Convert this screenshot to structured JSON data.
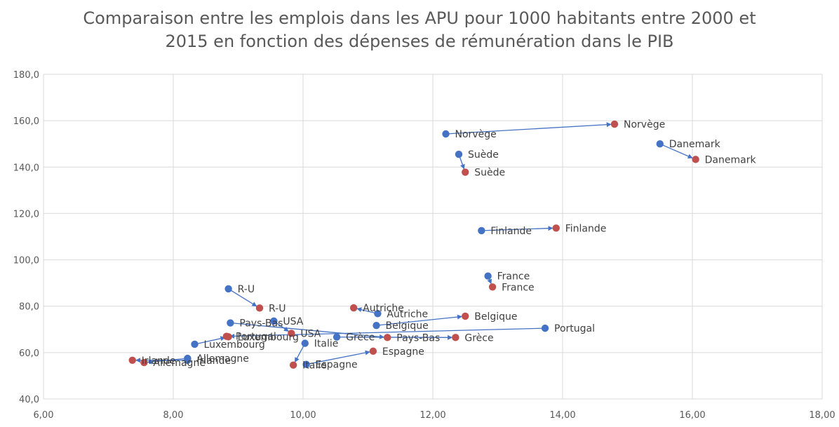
{
  "chart_data": {
    "type": "scatter",
    "title": [
      "Comparaison entre les emplois dans les APU pour 1000 habitants entre 2000 et",
      "2015 en fonction des dépenses de rémunération dans le PIB"
    ],
    "xlabel": "",
    "ylabel": "",
    "xlim": [
      6,
      18
    ],
    "ylim": [
      40,
      180
    ],
    "x_ticks": [
      "6,00",
      "8,00",
      "10,00",
      "12,00",
      "14,00",
      "16,00",
      "18,00"
    ],
    "y_ticks": [
      "40,0",
      "60,0",
      "80,0",
      "100,0",
      "120,0",
      "140,0",
      "160,0",
      "180,0"
    ],
    "grid": true,
    "colors": {
      "start": "#4472c4",
      "end": "#c0504d",
      "arrow": "#4472c4",
      "grid": "#d9d9d9"
    },
    "countries": [
      {
        "name": "Norvège",
        "from": [
          12.2,
          154.3
        ],
        "to": [
          14.8,
          158.5
        ]
      },
      {
        "name": "Danemark",
        "from": [
          15.5,
          150.0
        ],
        "to": [
          16.05,
          143.3
        ]
      },
      {
        "name": "Suède",
        "from": [
          12.4,
          145.5
        ],
        "to": [
          12.5,
          137.8
        ]
      },
      {
        "name": "Finlande",
        "from": [
          12.75,
          112.6
        ],
        "to": [
          13.9,
          113.7
        ]
      },
      {
        "name": "France",
        "from": [
          12.85,
          93.0
        ],
        "to": [
          12.92,
          88.3
        ]
      },
      {
        "name": "R-U",
        "from": [
          8.85,
          87.5
        ],
        "to": [
          9.33,
          79.2
        ]
      },
      {
        "name": "Autriche",
        "from": [
          11.15,
          76.8
        ],
        "to": [
          10.78,
          79.3
        ]
      },
      {
        "name": "Belgique",
        "from": [
          11.13,
          71.7
        ],
        "to": [
          12.5,
          75.7
        ]
      },
      {
        "name": "Portugal",
        "from": [
          13.73,
          70.5
        ],
        "to": [
          8.82,
          67.0
        ]
      },
      {
        "name": "Pays-Bas",
        "from": [
          8.88,
          72.8
        ],
        "to": [
          11.3,
          66.5
        ]
      },
      {
        "name": "USA",
        "from": [
          9.55,
          73.6
        ],
        "to": [
          9.82,
          68.3
        ]
      },
      {
        "name": "Grèce",
        "from": [
          10.52,
          66.7
        ],
        "to": [
          12.35,
          66.5
        ]
      },
      {
        "name": "Luxembourg",
        "from": [
          8.33,
          63.6
        ],
        "to": [
          8.85,
          66.8
        ]
      },
      {
        "name": "Italie",
        "from": [
          10.03,
          64.0
        ],
        "to": [
          9.85,
          54.6
        ]
      },
      {
        "name": "Espagne",
        "from": [
          10.05,
          54.9
        ],
        "to": [
          11.08,
          60.6
        ]
      },
      {
        "name": "Allemagne",
        "from": [
          8.22,
          57.5
        ],
        "to": [
          7.55,
          55.7
        ]
      },
      {
        "name": "Irlande",
        "from": [
          8.22,
          56.7
        ],
        "to": [
          7.37,
          56.7
        ]
      }
    ]
  }
}
